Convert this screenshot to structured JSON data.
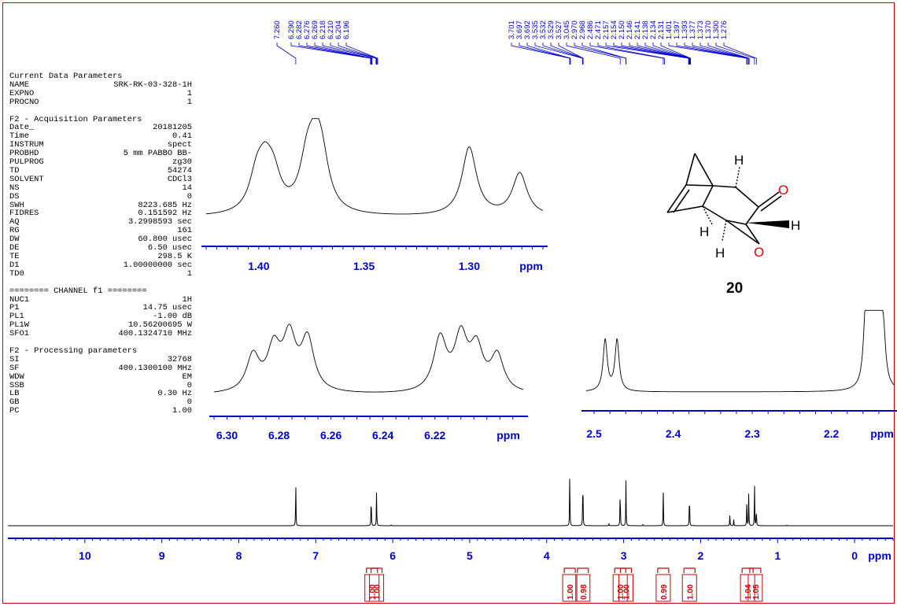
{
  "parameters": [
    {
      "h": "Current Data Parameters"
    },
    {
      "k": "NAME",
      "v": "SRK-RK-03-328-1H"
    },
    {
      "k": "EXPNO",
      "v": "1"
    },
    {
      "k": "PROCNO",
      "v": "1"
    },
    {
      "gap": true
    },
    {
      "h": "F2 - Acquisition Parameters"
    },
    {
      "k": "Date_",
      "v": "20181205"
    },
    {
      "k": "Time",
      "v": "0.41"
    },
    {
      "k": "INSTRUM",
      "v": "spect"
    },
    {
      "k": "PROBHD",
      "v": "5 mm PABBO BB-"
    },
    {
      "k": "PULPROG",
      "v": "zg30"
    },
    {
      "k": "TD",
      "v": "54274"
    },
    {
      "k": "SOLVENT",
      "v": "CDCl3"
    },
    {
      "k": "NS",
      "v": "14"
    },
    {
      "k": "DS",
      "v": "0"
    },
    {
      "k": "SWH",
      "v": "8223.685 Hz"
    },
    {
      "k": "FIDRES",
      "v": "0.151592 Hz"
    },
    {
      "k": "AQ",
      "v": "3.2998593 sec"
    },
    {
      "k": "RG",
      "v": "161"
    },
    {
      "k": "DW",
      "v": "60.800 usec"
    },
    {
      "k": "DE",
      "v": "6.50 usec"
    },
    {
      "k": "TE",
      "v": "298.5 K"
    },
    {
      "k": "D1",
      "v": "1.00000000 sec"
    },
    {
      "k": "TD0",
      "v": "1"
    },
    {
      "gap": true
    },
    {
      "h": "======== CHANNEL f1 ========"
    },
    {
      "k": "NUC1",
      "v": "1H"
    },
    {
      "k": "P1",
      "v": "14.75 usec"
    },
    {
      "k": "PL1",
      "v": "-1.00 dB"
    },
    {
      "k": "PL1W",
      "v": "10.56200695 W"
    },
    {
      "k": "SFO1",
      "v": "400.1324710 MHz"
    },
    {
      "gap": true
    },
    {
      "h": "F2 - Processing parameters"
    },
    {
      "k": "SI",
      "v": "32768"
    },
    {
      "k": "SF",
      "v": "400.1300100 MHz"
    },
    {
      "k": "WDW",
      "v": "EM"
    },
    {
      "k": "SSB",
      "v": "0"
    },
    {
      "k": "LB",
      "v": "0.30 Hz"
    },
    {
      "k": "GB",
      "v": "0"
    },
    {
      "k": "PC",
      "v": "1.00"
    }
  ],
  "molecule": {
    "h_label": "H",
    "o_label": "O",
    "compound_number": "20"
  },
  "colors": {
    "axis": "#0000cc",
    "integral": "#cc0000",
    "spectrum": "#000000",
    "border": "#cc0000"
  },
  "chart_data": [
    {
      "type": "line",
      "x_unit": "ppm",
      "x_ticks": [
        10,
        9,
        8,
        7,
        6,
        5,
        4,
        3,
        2,
        1,
        0
      ],
      "axis_label": "ppm",
      "xlim": [
        11,
        -0.5
      ],
      "peaks": [
        {
          "ppm": 7.26,
          "height": 0.82
        },
        {
          "ppm": 6.28,
          "height": 0.62
        },
        {
          "ppm": 6.21,
          "height": 0.62
        },
        {
          "ppm": 6.02,
          "height": 0.02
        },
        {
          "ppm": 3.7,
          "height": 1.0
        },
        {
          "ppm": 3.53,
          "height": 1.0
        },
        {
          "ppm": 3.19,
          "height": 0.03
        },
        {
          "ppm": 3.045,
          "height": 0.75
        },
        {
          "ppm": 2.97,
          "height": 0.78
        },
        {
          "ppm": 2.75,
          "height": 0.02
        },
        {
          "ppm": 2.486,
          "height": 0.66
        },
        {
          "ppm": 2.145,
          "height": 0.66
        },
        {
          "ppm": 1.62,
          "height": 0.2
        },
        {
          "ppm": 1.57,
          "height": 0.1
        },
        {
          "ppm": 1.4,
          "height": 0.45
        },
        {
          "ppm": 1.375,
          "height": 0.58
        },
        {
          "ppm": 1.3,
          "height": 0.74
        },
        {
          "ppm": 1.276,
          "height": 0.35
        },
        {
          "ppm": 0.88,
          "height": 0.01
        }
      ],
      "peak_labels": [
        "7.260",
        "6.290",
        "6.282",
        "6.276",
        "6.269",
        "6.218",
        "6.210",
        "6.204",
        "6.196",
        "3.701",
        "3.697",
        "3.692",
        "3.535",
        "3.532",
        "3.529",
        "3.527",
        "3.045",
        "2.970",
        "2.968",
        "2.486",
        "2.471",
        "2.157",
        "2.154",
        "2.150",
        "2.146",
        "2.141",
        "2.138",
        "2.134",
        "2.131",
        "1.401",
        "1.397",
        "1.393",
        "1.377",
        "1.373",
        "1.370",
        "1.300",
        "1.276"
      ],
      "integrals": [
        {
          "ppm": 6.27,
          "value": "1.00"
        },
        {
          "ppm": 6.21,
          "value": "1.00"
        },
        {
          "ppm": 3.7,
          "value": "1.00"
        },
        {
          "ppm": 3.53,
          "value": "0.98"
        },
        {
          "ppm": 3.045,
          "value": "1.00"
        },
        {
          "ppm": 2.97,
          "value": "1.00"
        },
        {
          "ppm": 2.486,
          "value": "0.99"
        },
        {
          "ppm": 2.145,
          "value": "1.00"
        },
        {
          "ppm": 1.39,
          "value": "1.04"
        },
        {
          "ppm": 1.29,
          "value": "1.05"
        }
      ]
    },
    {
      "type": "line",
      "name": "inset-1.40-1.28",
      "x_ticks": [
        "1.40",
        "1.35",
        "1.30"
      ],
      "axis_label": "ppm",
      "xlim": [
        1.425,
        1.265
      ],
      "peaks": [
        {
          "ppm": 1.401,
          "height": 0.48
        },
        {
          "ppm": 1.397,
          "height": 0.55
        },
        {
          "ppm": 1.393,
          "height": 0.45
        },
        {
          "ppm": 1.377,
          "height": 0.65
        },
        {
          "ppm": 1.373,
          "height": 0.72
        },
        {
          "ppm": 1.37,
          "height": 0.58
        },
        {
          "ppm": 1.3,
          "height": 1.0
        },
        {
          "ppm": 1.276,
          "height": 0.62
        }
      ]
    },
    {
      "type": "line",
      "name": "inset-6.30-6.20",
      "x_ticks": [
        "6.30",
        "6.28",
        "6.26",
        "6.24",
        "6.22"
      ],
      "axis_label": "ppm",
      "xlim": [
        6.305,
        6.186
      ],
      "peaks": [
        {
          "ppm": 6.29,
          "height": 0.65
        },
        {
          "ppm": 6.282,
          "height": 0.75
        },
        {
          "ppm": 6.276,
          "height": 0.95
        },
        {
          "ppm": 6.269,
          "height": 0.93
        },
        {
          "ppm": 6.218,
          "height": 0.95
        },
        {
          "ppm": 6.21,
          "height": 0.95
        },
        {
          "ppm": 6.204,
          "height": 0.75
        },
        {
          "ppm": 6.196,
          "height": 0.65
        }
      ]
    },
    {
      "type": "line",
      "name": "inset-2.5-2.1",
      "x_ticks": [
        "2.5",
        "2.4",
        "2.3",
        "2.2"
      ],
      "axis_label": "ppm",
      "xlim": [
        2.51,
        2.12
      ],
      "peaks": [
        {
          "ppm": 2.486,
          "height": 0.9
        },
        {
          "ppm": 2.471,
          "height": 0.9
        },
        {
          "ppm": 2.157,
          "height": 0.9
        },
        {
          "ppm": 2.154,
          "height": 0.8
        },
        {
          "ppm": 2.15,
          "height": 0.85
        },
        {
          "ppm": 2.146,
          "height": 0.75
        },
        {
          "ppm": 2.141,
          "height": 0.85
        },
        {
          "ppm": 2.138,
          "height": 0.8
        },
        {
          "ppm": 2.134,
          "height": 0.75
        }
      ]
    }
  ]
}
